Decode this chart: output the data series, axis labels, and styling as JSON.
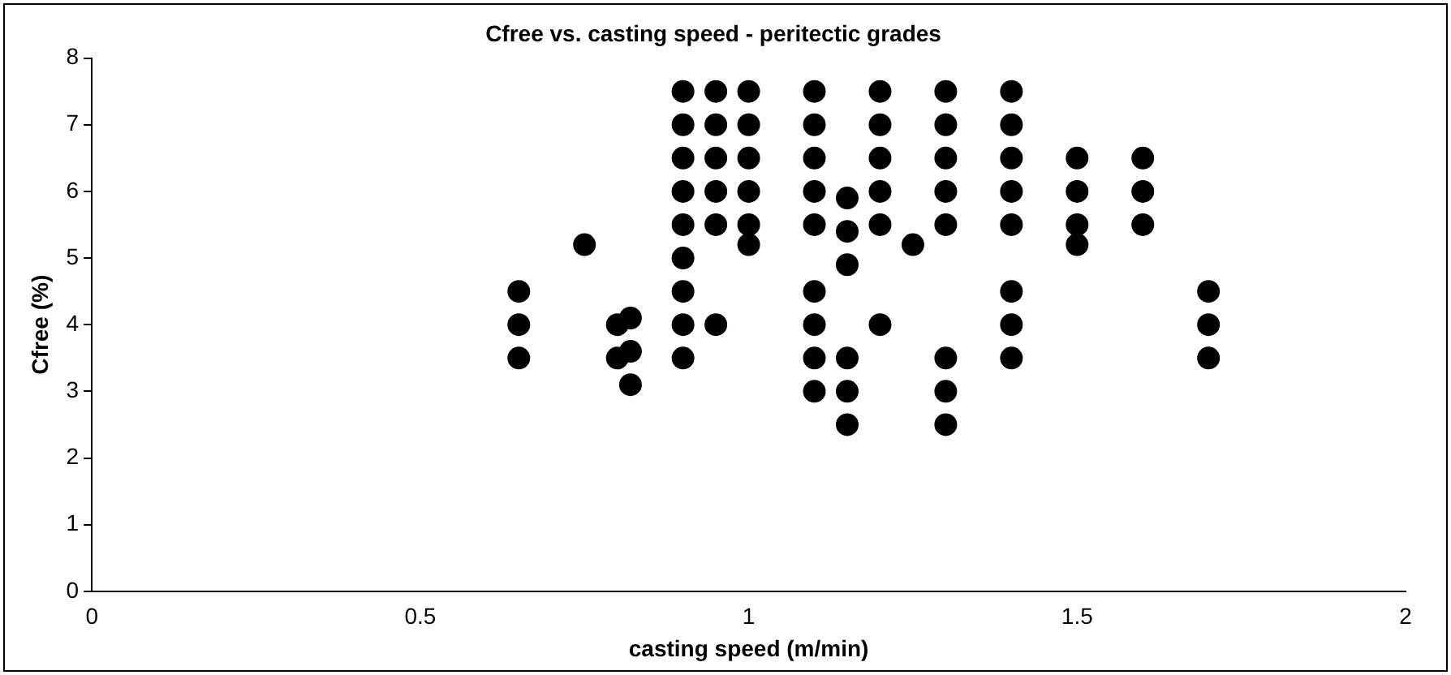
{
  "chart_data": {
    "type": "scatter",
    "title": "Cfree vs. casting speed - peritectic grades",
    "xlabel": "casting speed (m/min)",
    "ylabel": "Cfree (%)",
    "x": [
      0.65,
      0.65,
      0.65,
      0.75,
      0.8,
      0.8,
      0.82,
      0.82,
      0.82,
      0.9,
      0.9,
      0.9,
      0.9,
      0.9,
      0.9,
      0.9,
      0.9,
      0.9,
      0.95,
      0.95,
      0.95,
      0.95,
      0.95,
      0.95,
      1.0,
      1.0,
      1.0,
      1.0,
      1.0,
      1.0,
      1.1,
      1.1,
      1.1,
      1.1,
      1.1,
      1.1,
      1.1,
      1.1,
      1.1,
      1.15,
      1.15,
      1.15,
      1.15,
      1.15,
      1.15,
      1.2,
      1.2,
      1.2,
      1.2,
      1.2,
      1.2,
      1.25,
      1.3,
      1.3,
      1.3,
      1.3,
      1.3,
      1.3,
      1.3,
      1.3,
      1.4,
      1.4,
      1.4,
      1.4,
      1.4,
      1.4,
      1.4,
      1.4,
      1.5,
      1.5,
      1.5,
      1.5,
      1.6,
      1.6,
      1.6,
      1.7,
      1.7,
      1.7
    ],
    "series": [
      {
        "color": "#000000",
        "values": [
          4.5,
          4.0,
          3.5,
          5.2,
          4.0,
          3.5,
          4.1,
          3.6,
          3.1,
          7.5,
          7.0,
          6.5,
          6.0,
          5.5,
          5.0,
          4.5,
          4.0,
          3.5,
          7.5,
          7.0,
          6.5,
          6.0,
          5.5,
          4.0,
          7.5,
          7.0,
          6.5,
          6.0,
          5.5,
          5.2,
          7.5,
          7.0,
          6.5,
          6.0,
          5.5,
          4.5,
          4.0,
          3.5,
          3.0,
          5.9,
          5.4,
          4.9,
          3.5,
          3.0,
          2.5,
          7.5,
          7.0,
          6.5,
          6.0,
          5.5,
          4.0,
          5.2,
          7.5,
          7.0,
          6.5,
          6.0,
          5.5,
          3.5,
          3.0,
          2.5,
          7.5,
          7.0,
          6.5,
          6.0,
          5.5,
          4.5,
          4.0,
          3.5,
          6.5,
          6.0,
          5.5,
          5.2,
          6.5,
          6.0,
          5.5,
          4.5,
          4.0,
          3.5
        ]
      }
    ],
    "xlim": [
      0,
      2
    ],
    "xticks": [
      0,
      0.5,
      1,
      1.5,
      2
    ],
    "ylim": [
      0,
      8
    ],
    "yticks": [
      0,
      1,
      2,
      3,
      4,
      5,
      6,
      7,
      8
    ],
    "marker": "circle",
    "grid": false,
    "legend": false
  }
}
